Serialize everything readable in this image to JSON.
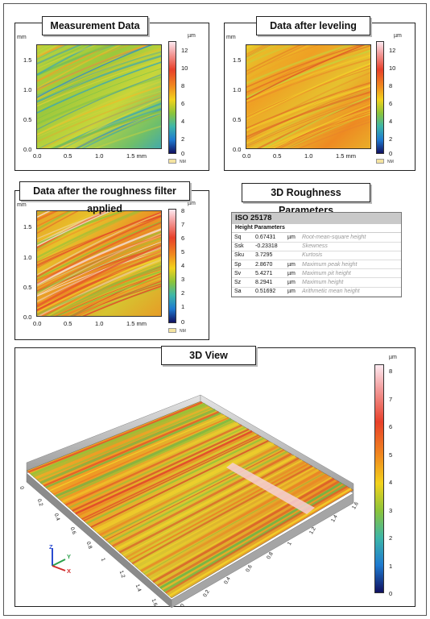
{
  "panels": {
    "measurement": {
      "title": "Measurement Data",
      "y_unit": "mm",
      "cb_unit": "µm",
      "y_ticks": [
        "1.5",
        "1.0",
        "0.5",
        "0.0"
      ],
      "x_ticks": [
        "0.0",
        "0.5",
        "1.0",
        "1.5 mm"
      ],
      "cb_ticks": [
        "12",
        "10",
        "8",
        "6",
        "4",
        "2",
        "0"
      ],
      "nm": "NM"
    },
    "leveling": {
      "title": "Data after leveling",
      "y_unit": "mm",
      "cb_unit": "µm",
      "y_ticks": [
        "1.5",
        "1.0",
        "0.5",
        "0.0"
      ],
      "x_ticks": [
        "0.0",
        "0.5",
        "1.0",
        "1.5 mm"
      ],
      "cb_ticks": [
        "12",
        "10",
        "8",
        "6",
        "4",
        "2",
        "0"
      ],
      "nm": "NM"
    },
    "roughness": {
      "title": "Data after the roughness filter applied",
      "y_unit": "mm",
      "cb_unit": "µm",
      "y_ticks": [
        "1.5",
        "1.0",
        "0.5",
        "0.0"
      ],
      "x_ticks": [
        "0.0",
        "0.5",
        "1.0",
        "1.5 mm"
      ],
      "cb_ticks": [
        "8",
        "7",
        "6",
        "5",
        "4",
        "3",
        "2",
        "1",
        "0"
      ],
      "nm": "NM"
    }
  },
  "params": {
    "section_title": "3D Roughness Parameters",
    "standard": "ISO 25178",
    "group": "Height Parameters",
    "rows": [
      {
        "sym": "Sq",
        "value": "0.67431",
        "unit": "µm",
        "desc": "Root-mean-square height"
      },
      {
        "sym": "Ssk",
        "value": "-0.23318",
        "unit": "",
        "desc": "Skewness"
      },
      {
        "sym": "Sku",
        "value": "3.7295",
        "unit": "",
        "desc": "Kurtosis"
      },
      {
        "sym": "Sp",
        "value": "2.8670",
        "unit": "µm",
        "desc": "Maximum peak height"
      },
      {
        "sym": "Sv",
        "value": "5.4271",
        "unit": "µm",
        "desc": "Maximum pit height"
      },
      {
        "sym": "Sz",
        "value": "8.2941",
        "unit": "µm",
        "desc": "Maximum height"
      },
      {
        "sym": "Sa",
        "value": "0.51692",
        "unit": "µm",
        "desc": "Arithmetic mean height"
      }
    ]
  },
  "view3d": {
    "title": "3D View",
    "cb_unit": "µm",
    "cb_ticks": [
      "8",
      "7",
      "6",
      "5",
      "4",
      "3",
      "2",
      "1",
      "0"
    ],
    "left_axis_ticks": [
      "0",
      "0.2",
      "0.4",
      "0.6",
      "0.8",
      "1",
      "1.2",
      "1.4",
      "1.6"
    ],
    "right_axis_ticks": [
      "0",
      "0.2",
      "0.4",
      "0.6",
      "0.8",
      "1",
      "1.2",
      "1.4",
      "1.6"
    ],
    "axes": {
      "z": "Z",
      "y": "Y",
      "x": "X"
    }
  },
  "colors": {
    "map_low": "#1e2bd0",
    "map_mid": "#8cc43a",
    "map_high": "#e8402a",
    "map_peak": "#fbe8ee"
  }
}
